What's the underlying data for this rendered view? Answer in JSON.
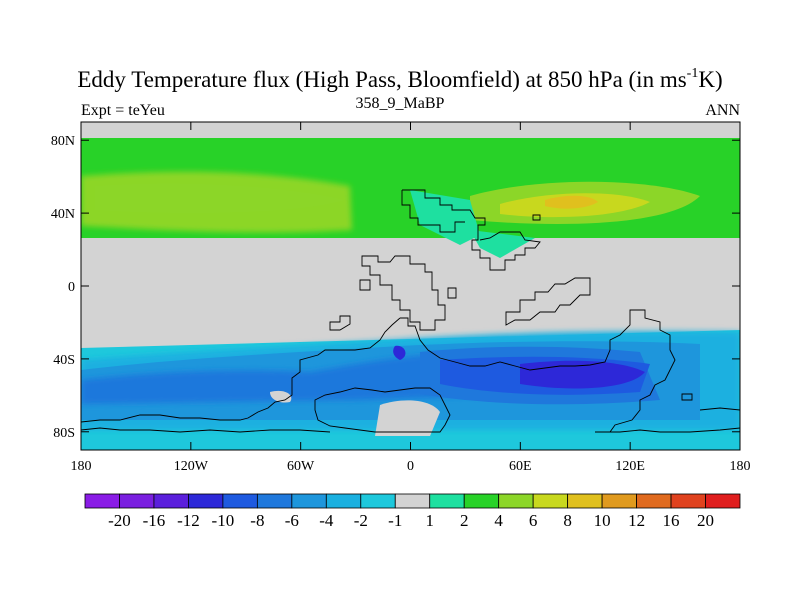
{
  "title": {
    "main": "Eddy Temperature flux (High Pass, Bloomfield) at 850 hPa (in ms",
    "sup": "-1",
    "end": "K)"
  },
  "subtitle": {
    "left": "Expt = teYeu",
    "center": "358_9_MaBP",
    "right": "ANN"
  },
  "axes": {
    "x_ticks": [
      {
        "lon": -180,
        "label": "180"
      },
      {
        "lon": -120,
        "label": "120W"
      },
      {
        "lon": -60,
        "label": "60W"
      },
      {
        "lon": 0,
        "label": "0"
      },
      {
        "lon": 60,
        "label": "60E"
      },
      {
        "lon": 120,
        "label": "120E"
      },
      {
        "lon": 180,
        "label": "180"
      }
    ],
    "y_ticks": [
      {
        "lat": 80,
        "label": "80N"
      },
      {
        "lat": 40,
        "label": "40N"
      },
      {
        "lat": 0,
        "label": "0"
      },
      {
        "lat": -40,
        "label": "40S"
      },
      {
        "lat": -80,
        "label": "80S"
      }
    ],
    "lon_range": [
      -180,
      180
    ],
    "lat_range": [
      -90,
      90
    ]
  },
  "colorbar": {
    "labels": [
      "-20",
      "-16",
      "-12",
      "-10",
      "-8",
      "-6",
      "-4",
      "-2",
      "-1",
      "1",
      "2",
      "4",
      "6",
      "8",
      "10",
      "12",
      "16",
      "20"
    ],
    "colors": [
      "#8a1ce6",
      "#7a1fe0",
      "#5b1fdc",
      "#2d28d8",
      "#1e5ae0",
      "#1f78dc",
      "#1e96dc",
      "#1ab0e0",
      "#1ec8dc",
      "#d3d3d3",
      "#1ee0a0",
      "#28d228",
      "#8cd628",
      "#c8d81e",
      "#e0c01e",
      "#e09a1e",
      "#e06a1e",
      "#e0421e",
      "#e01e1e"
    ]
  }
}
